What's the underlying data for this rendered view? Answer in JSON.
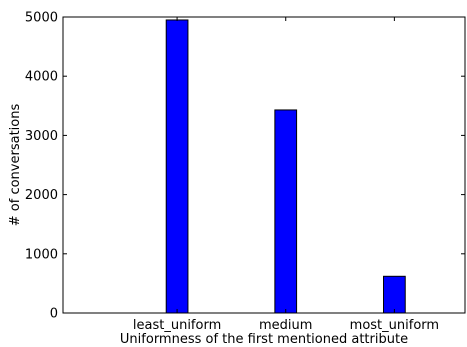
{
  "chart_data": {
    "type": "bar",
    "categories": [
      "least_uniform",
      "medium",
      "most_uniform"
    ],
    "values": [
      4950,
      3430,
      620
    ],
    "xlabel": "Uniformness of the first mentioned attribute",
    "ylabel": "# of conversations",
    "ylim": [
      0,
      5000
    ],
    "yticks": [
      0,
      1000,
      2000,
      3000,
      4000,
      5000
    ],
    "grid": false,
    "legend": "none",
    "bar_color": "#0000ff",
    "edge_color": "#000000"
  }
}
